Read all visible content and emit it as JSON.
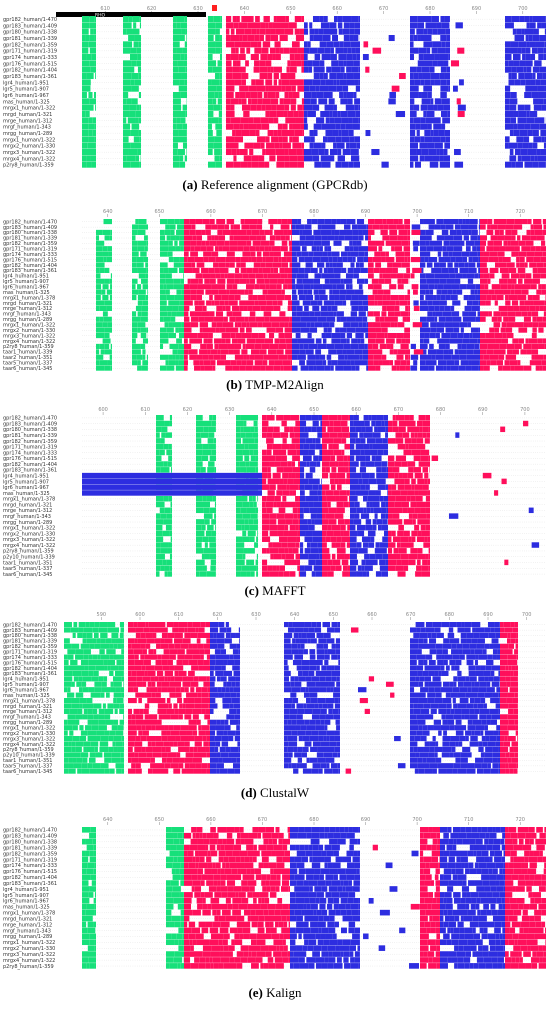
{
  "colors": {
    "hydrophobic": "#ff0f5b",
    "polar": "#2d2de0",
    "special": "#16e07a",
    "ruler": "#888888",
    "label": "#333333",
    "highlight": "#000000",
    "marker": "#ff2020"
  },
  "panels": [
    {
      "letter": "(a)",
      "caption": "Reference alignment (GPCRdb)",
      "ticks": [
        "610",
        "620",
        "630",
        "640",
        "650",
        "660",
        "670",
        "680",
        "690",
        "700"
      ],
      "rows": [
        "gpr182_human/1-470",
        "gpr183_human/1-409",
        "gpr180_human/1-338",
        "gpr181_human/1-339",
        "gpr182_human/1-359",
        "gpr171_human/1-319",
        "gpr174_human/1-333",
        "gpr176_human/1-515",
        "gpr182_human/1-404",
        "gpr183_human/1-361",
        "lgr4_human/1-951",
        "lgr5_human/1-907",
        "lgr6_human/1-967",
        "mas_human/1-325",
        "mrgx1_human/1-322",
        "mrgd_human/1-321",
        "mrge_human/1-312",
        "mrgf_human/1-343",
        "mrgg_human/1-289",
        "mrgx1_human/1-322",
        "mrgx2_human/1-330",
        "mrgx3_human/1-322",
        "mrgx4_human/1-322",
        "p2ry8_human/1-359"
      ],
      "top_label": "RHO"
    },
    {
      "letter": "(b)",
      "caption": "TMP-M2Align",
      "ticks": [
        "640",
        "650",
        "660",
        "670",
        "680",
        "690",
        "700",
        "710",
        "720"
      ],
      "rows": [
        "gpr182_human/1-470",
        "gpr183_human/1-409",
        "gpr180_human/1-338",
        "gpr181_human/1-339",
        "gpr182_human/1-359",
        "gpr171_human/1-319",
        "gpr174_human/1-333",
        "gpr176_human/1-515",
        "gpr182_human/1-404",
        "gpr183_human/1-361",
        "lgr4_human/1-951",
        "lgr5_human/1-907",
        "lgr6_human/1-967",
        "mas_human/1-325",
        "mrgx1_human/1-378",
        "mrgd_human/1-321",
        "mrge_human/1-312",
        "mrgf_human/1-343",
        "mrgg_human/1-289",
        "mrgx1_human/1-322",
        "mrgx2_human/1-330",
        "mrgx3_human/1-322",
        "mrgx4_human/1-322",
        "p2ry8_human/1-359",
        "taar1_human/1-339",
        "taar2_human/1-351",
        "taar5_human/1-337",
        "taar6_human/1-345"
      ]
    },
    {
      "letter": "(c)",
      "caption": "MAFFT",
      "ticks": [
        "600",
        "610",
        "620",
        "630",
        "640",
        "650",
        "660",
        "670",
        "680",
        "690",
        "700"
      ],
      "rows": [
        "gpr182_human/1-470",
        "gpr183_human/1-409",
        "gpr180_human/1-338",
        "gpr181_human/1-339",
        "gpr182_human/1-359",
        "gpr171_human/1-319",
        "gpr174_human/1-333",
        "gpr176_human/1-515",
        "gpr182_human/1-404",
        "gpr183_human/1-361",
        "lgr4_human/1-951",
        "lgr5_human/1-907",
        "lgr6_human/1-967",
        "mas_human/1-325",
        "mrgx1_human/1-378",
        "mrgd_human/1-321",
        "mrge_human/1-312",
        "mrgf_human/1-343",
        "mrgg_human/1-289",
        "mrgx1_human/1-322",
        "mrgx2_human/1-330",
        "mrgx3_human/1-322",
        "mrgx4_human/1-322",
        "p2ry8_human/1-359",
        "p2y10_human/1-339",
        "taar1_human/1-351",
        "taar5_human/1-337",
        "taar6_human/1-345"
      ]
    },
    {
      "letter": "(d)",
      "caption": "ClustalW",
      "ticks": [
        "590",
        "600",
        "610",
        "620",
        "630",
        "640",
        "650",
        "660",
        "670",
        "680",
        "690",
        "700"
      ],
      "rows": [
        "gpr182_human/1-470",
        "gpr183_human/1-409",
        "gpr180_human/1-338",
        "gpr181_human/1-339",
        "gpr182_human/1-359",
        "gpr171_human/1-319",
        "gpr174_human/1-333",
        "gpr176_human/1-515",
        "gpr182_human/1-404",
        "gpr183_human/1-361",
        "lgr4_human/1-951",
        "lgr5_human/1-907",
        "lgr6_human/1-967",
        "mas_human/1-325",
        "mrgx1_human/1-378",
        "mrgd_human/1-321",
        "mrge_human/1-312",
        "mrgf_human/1-343",
        "mrgg_human/1-289",
        "mrgx1_human/1-322",
        "mrgx2_human/1-330",
        "mrgx3_human/1-322",
        "mrgx4_human/1-322",
        "p2ry8_human/1-359",
        "p2y10_human/1-339",
        "taar1_human/1-351",
        "taar5_human/1-337",
        "taar6_human/1-345"
      ]
    },
    {
      "letter": "(e)",
      "caption": "Kalign",
      "ticks": [
        "640",
        "650",
        "660",
        "670",
        "680",
        "690",
        "700",
        "710",
        "720"
      ],
      "rows": [
        "gpr182_human/1-470",
        "gpr183_human/1-409",
        "gpr180_human/1-338",
        "gpr181_human/1-339",
        "gpr182_human/1-359",
        "gpr171_human/1-319",
        "gpr174_human/1-333",
        "gpr176_human/1-515",
        "gpr182_human/1-404",
        "gpr183_human/1-361",
        "lgr4_human/1-951",
        "lgr5_human/1-907",
        "lgr6_human/1-967",
        "mas_human/1-325",
        "mrgx1_human/1-378",
        "mrgd_human/1-321",
        "mrge_human/1-312",
        "mrgf_human/1-343",
        "mrgg_human/1-289",
        "mrgx1_human/1-322",
        "mrgx2_human/1-330",
        "mrgx3_human/1-322",
        "mrgx4_human/1-322",
        "p2ry8_human/1-359"
      ]
    }
  ]
}
